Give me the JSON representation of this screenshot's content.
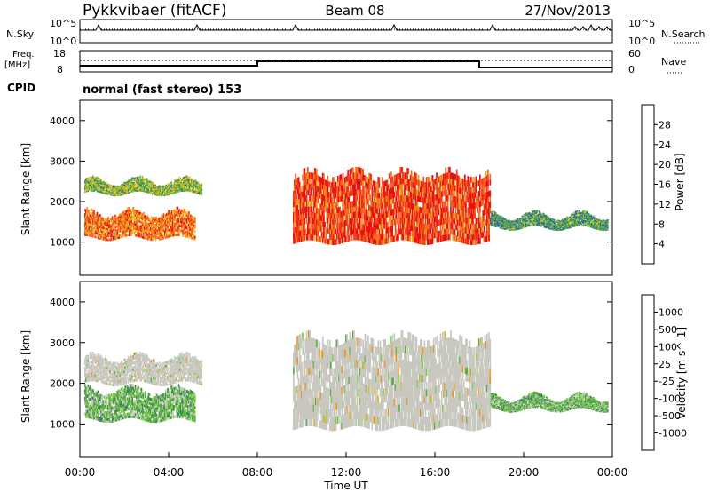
{
  "header": {
    "title": "Pykkvibaer (fitACF)",
    "beam": "Beam 08",
    "date": "27/Nov/2013"
  },
  "labels": {
    "nsky": "N.Sky",
    "nsearch": "N.Search",
    "freq_top": "Freq.",
    "freq_unit": "[MHz]",
    "nave": "Nave",
    "cpid": "CPID",
    "cpid_value": "normal (fast stereo) 153"
  },
  "ticks": {
    "noise_left": [
      "10^5",
      "10^0"
    ],
    "noise_right": [
      "10^5",
      "10^0"
    ],
    "freq_left": [
      "18",
      "8"
    ],
    "nave_right": [
      "60",
      "0"
    ]
  },
  "colors": {
    "noise_sky": "#000000",
    "freq_line": "#000000",
    "nave_line": "#000000"
  },
  "chart_data": [
    {
      "type": "heatmap",
      "panel": "power",
      "xlabel": "",
      "ylabel": "Slant Range [km]",
      "xlim": [
        "00:00",
        "24:00"
      ],
      "ylim": [
        180,
        4500
      ],
      "yticks": [
        "1000",
        "2000",
        "3000",
        "4000"
      ],
      "colorbar": {
        "label": "Power [dB]",
        "ticks": [
          "4",
          "8",
          "12",
          "16",
          "20",
          "24",
          "28"
        ],
        "colors": [
          "#0a1ecc",
          "#2a56c4",
          "#2f7a8c",
          "#3c9a4a",
          "#6fbe3a",
          "#e8c21a",
          "#f0a020",
          "#f07020",
          "#f04020",
          "#e81010"
        ]
      },
      "regions": [
        {
          "t_start": 0.2,
          "t_end": 5.5,
          "r_min": 2200,
          "r_max": 2500,
          "level_db": 12
        },
        {
          "t_start": 0.2,
          "t_end": 5.2,
          "r_min": 1100,
          "r_max": 1700,
          "level_db": 20
        },
        {
          "t_start": 9.6,
          "t_end": 18.5,
          "r_min": 1000,
          "r_max": 2600,
          "level_db": 24
        },
        {
          "t_start": 18.5,
          "t_end": 23.8,
          "r_min": 1350,
          "r_max": 1650,
          "level_db": 10
        }
      ]
    },
    {
      "type": "heatmap",
      "panel": "velocity",
      "xlabel": "Time UT",
      "ylabel": "Slant Range [km]",
      "xlim": [
        "00:00",
        "24:00"
      ],
      "ylim": [
        180,
        4500
      ],
      "xticks": [
        "00:00",
        "04:00",
        "08:00",
        "12:00",
        "16:00",
        "20:00",
        "00:00"
      ],
      "yticks": [
        "1000",
        "2000",
        "3000",
        "4000"
      ],
      "colorbar": {
        "label": "Velocity [m s^-1]",
        "ticks": [
          "1000",
          "500",
          "100",
          "25",
          "-25",
          "-100",
          "-500",
          "-1000"
        ],
        "colors": [
          "#2040b0",
          "#2e6fa0",
          "#3c8a5a",
          "#56b040",
          "#7ccc40",
          "#c8c8c0",
          "#e8b030",
          "#f09020",
          "#f06020",
          "#e82020"
        ]
      },
      "regions": [
        {
          "t_start": 0.2,
          "t_end": 5.5,
          "r_min": 2000,
          "r_max": 2600,
          "velocity": 0
        },
        {
          "t_start": 0.2,
          "t_end": 5.2,
          "r_min": 1100,
          "r_max": 1800,
          "velocity": 100
        },
        {
          "t_start": 9.6,
          "t_end": 18.5,
          "r_min": 900,
          "r_max": 3000,
          "velocity": 0
        },
        {
          "t_start": 18.5,
          "t_end": 23.8,
          "r_min": 1350,
          "r_max": 1650,
          "velocity": 150
        }
      ]
    }
  ]
}
